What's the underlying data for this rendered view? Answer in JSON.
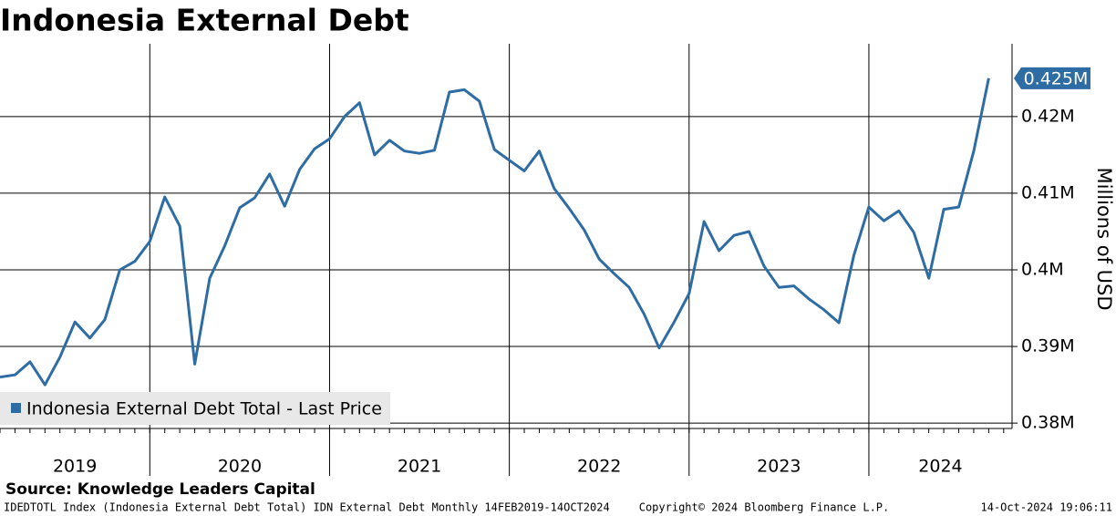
{
  "chart_data": {
    "type": "line",
    "title": "Indonesia External Debt",
    "y_label": "Millions of USD",
    "source": "Source: Knowledge Leaders Capital",
    "footer_left": "IDEDTOTL Index (Indonesia External Debt Total) IDN External Debt  Monthly 14FEB2019-14OCT2024",
    "footer_center": "Copyright© 2024 Bloomberg Finance L.P.",
    "footer_right": "14-Oct-2024 19:06:11",
    "x_labels": [
      "2019",
      "2020",
      "2021",
      "2022",
      "2023",
      "2024"
    ],
    "ylim": [
      0.3793,
      0.4295
    ],
    "yticks": [
      {
        "value": 0.38,
        "label": "0.38M"
      },
      {
        "value": 0.39,
        "label": "0.39M"
      },
      {
        "value": 0.4,
        "label": "0.4M"
      },
      {
        "value": 0.41,
        "label": "0.41M"
      },
      {
        "value": 0.42,
        "label": "0.42M"
      }
    ],
    "grid": true,
    "legend": "lower left",
    "series": [
      {
        "name": "Indonesia External Debt Total - Last Price",
        "color": "#2e6ca4",
        "last_label": "0.425M",
        "values": [
          0.386,
          0.3863,
          0.388,
          0.385,
          0.3886,
          0.3932,
          0.3911,
          0.3935,
          0.4,
          0.4011,
          0.4037,
          0.4095,
          0.4057,
          0.3877,
          0.3989,
          0.4031,
          0.4081,
          0.4094,
          0.4125,
          0.4083,
          0.4131,
          0.4158,
          0.4171,
          0.42,
          0.4218,
          0.415,
          0.4169,
          0.4155,
          0.4152,
          0.4156,
          0.4232,
          0.4235,
          0.422,
          0.4157,
          0.4143,
          0.4129,
          0.4155,
          0.4106,
          0.408,
          0.4052,
          0.4014,
          0.3995,
          0.3977,
          0.3942,
          0.3898,
          0.3932,
          0.3969,
          0.4063,
          0.4025,
          0.4045,
          0.405,
          0.4005,
          0.3977,
          0.3979,
          0.3962,
          0.3948,
          0.3931,
          0.4019,
          0.4082,
          0.4064,
          0.4077,
          0.4049,
          0.3989,
          0.4079,
          0.4082,
          0.4155,
          0.425
        ]
      }
    ]
  }
}
